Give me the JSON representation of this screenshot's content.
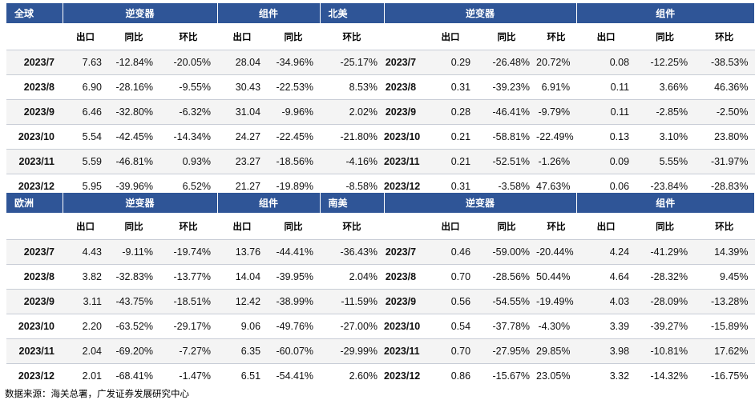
{
  "labels": {
    "inverter": "逆变器",
    "module": "组件",
    "export": "出口",
    "yoy": "同比",
    "mom": "环比"
  },
  "panels": {
    "top": {
      "left_region": "全球",
      "right_region": "北美",
      "rows": [
        {
          "date": "2023/7",
          "l": [
            "7.63",
            "-12.84%",
            "-20.05%",
            "28.04",
            "-34.96%",
            "-25.17%"
          ],
          "r": [
            "0.29",
            "-26.48%",
            "20.72%",
            "0.08",
            "-12.25%",
            "-38.53%"
          ]
        },
        {
          "date": "2023/8",
          "l": [
            "6.90",
            "-28.16%",
            "-9.55%",
            "30.43",
            "-22.53%",
            "8.53%"
          ],
          "r": [
            "0.31",
            "-39.23%",
            "6.91%",
            "0.11",
            "3.66%",
            "46.36%"
          ]
        },
        {
          "date": "2023/9",
          "l": [
            "6.46",
            "-32.80%",
            "-6.32%",
            "31.04",
            "-9.96%",
            "2.02%"
          ],
          "r": [
            "0.28",
            "-46.41%",
            "-9.79%",
            "0.11",
            "-2.85%",
            "-2.50%"
          ]
        },
        {
          "date": "2023/10",
          "l": [
            "5.54",
            "-42.45%",
            "-14.34%",
            "24.27",
            "-22.45%",
            "-21.80%"
          ],
          "r": [
            "0.21",
            "-58.81%",
            "-22.49%",
            "0.13",
            "3.10%",
            "23.80%"
          ]
        },
        {
          "date": "2023/11",
          "l": [
            "5.59",
            "-46.81%",
            "0.93%",
            "23.27",
            "-18.56%",
            "-4.16%"
          ],
          "r": [
            "0.21",
            "-52.51%",
            "-1.26%",
            "0.09",
            "5.55%",
            "-31.97%"
          ]
        },
        {
          "date": "2023/12",
          "l": [
            "5.95",
            "-39.96%",
            "6.52%",
            "21.27",
            "-19.89%",
            "-8.58%"
          ],
          "r": [
            "0.31",
            "-3.58%",
            "47.63%",
            "0.06",
            "-23.84%",
            "-28.83%"
          ]
        }
      ]
    },
    "bottom": {
      "left_region": "欧洲",
      "right_region": "南美",
      "rows": [
        {
          "date": "2023/7",
          "l": [
            "4.43",
            "-9.11%",
            "-19.74%",
            "13.76",
            "-44.41%",
            "-36.43%"
          ],
          "r": [
            "0.46",
            "-59.00%",
            "-20.44%",
            "4.24",
            "-41.29%",
            "14.39%"
          ]
        },
        {
          "date": "2023/8",
          "l": [
            "3.82",
            "-32.83%",
            "-13.77%",
            "14.04",
            "-39.95%",
            "2.04%"
          ],
          "r": [
            "0.70",
            "-28.56%",
            "50.44%",
            "4.64",
            "-28.32%",
            "9.45%"
          ]
        },
        {
          "date": "2023/9",
          "l": [
            "3.11",
            "-43.75%",
            "-18.51%",
            "12.42",
            "-38.99%",
            "-11.59%"
          ],
          "r": [
            "0.56",
            "-54.55%",
            "-19.49%",
            "4.03",
            "-28.09%",
            "-13.28%"
          ]
        },
        {
          "date": "2023/10",
          "l": [
            "2.20",
            "-63.52%",
            "-29.17%",
            "9.06",
            "-49.76%",
            "-27.00%"
          ],
          "r": [
            "0.54",
            "-37.78%",
            "-4.30%",
            "3.39",
            "-39.27%",
            "-15.89%"
          ]
        },
        {
          "date": "2023/11",
          "l": [
            "2.04",
            "-69.20%",
            "-7.27%",
            "6.35",
            "-60.07%",
            "-29.99%"
          ],
          "r": [
            "0.70",
            "-27.95%",
            "29.85%",
            "3.98",
            "-10.81%",
            "17.62%"
          ]
        },
        {
          "date": "2023/12",
          "l": [
            "2.01",
            "-68.41%",
            "-1.47%",
            "6.51",
            "-54.41%",
            "2.60%"
          ],
          "r": [
            "0.86",
            "-15.67%",
            "23.05%",
            "3.32",
            "-14.32%",
            "-16.75%"
          ]
        }
      ]
    }
  },
  "source": "数据来源：海关总署，广发证券发展研究中心"
}
